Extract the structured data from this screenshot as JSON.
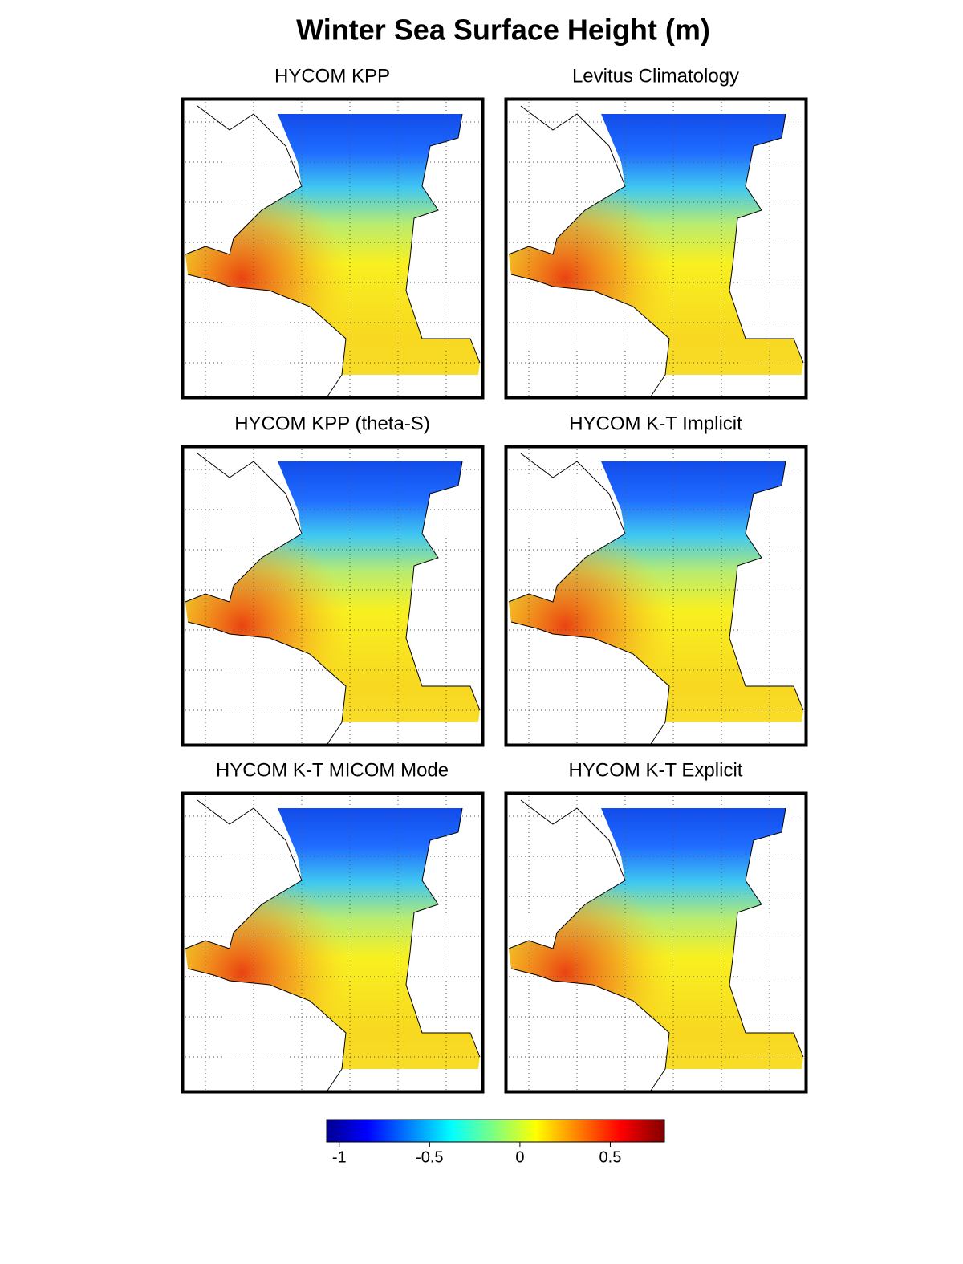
{
  "title": "Winter Sea Surface Height (m)",
  "panels": [
    {
      "title": "HYCOM KPP"
    },
    {
      "title": "Levitus Climatology"
    },
    {
      "title": "HYCOM KPP (theta-S)"
    },
    {
      "title": "HYCOM K-T Implicit"
    },
    {
      "title": "HYCOM K-T MICOM Mode"
    },
    {
      "title": "HYCOM K-T Explicit"
    }
  ],
  "colorbar": {
    "clim": [
      -1.07,
      0.8
    ],
    "ticks": [
      -1,
      -0.5,
      0,
      0.5
    ]
  }
}
